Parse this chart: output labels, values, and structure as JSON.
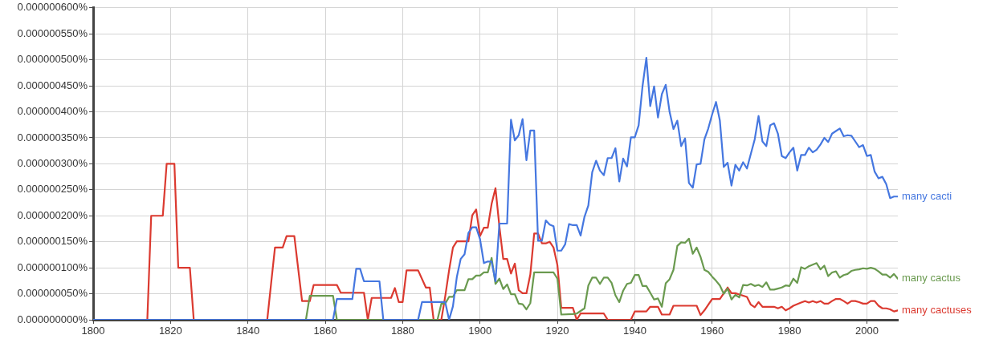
{
  "chart_data": {
    "type": "line",
    "xlim": [
      1800,
      2008
    ],
    "xticks": [
      1800,
      1820,
      1840,
      1860,
      1880,
      1900,
      1920,
      1940,
      1960,
      1980,
      2000
    ],
    "ylim": [
      0,
      6e-07
    ],
    "yticks": [
      {
        "value": 0,
        "label": "0.000000000%"
      },
      {
        "value": 5e-08,
        "label": "0.000000050%"
      },
      {
        "value": 1e-07,
        "label": "0.000000100%"
      },
      {
        "value": 1.5e-07,
        "label": "0.000000150%"
      },
      {
        "value": 2e-07,
        "label": "0.000000200%"
      },
      {
        "value": 2.5e-07,
        "label": "0.000000250%"
      },
      {
        "value": 3e-07,
        "label": "0.000000300%"
      },
      {
        "value": 3.5e-07,
        "label": "0.000000350%"
      },
      {
        "value": 4e-07,
        "label": "0.000000400%"
      },
      {
        "value": 4.5e-07,
        "label": "0.000000450%"
      },
      {
        "value": 5e-07,
        "label": "0.000000500%"
      },
      {
        "value": 5.5e-07,
        "label": "0.000000550%"
      },
      {
        "value": 6e-07,
        "label": "0.000000600%"
      }
    ],
    "grid": true,
    "legend": false,
    "marker": "none",
    "line_style": "solid",
    "series": [
      {
        "name": "many cacti",
        "color": "#4577e0",
        "x": [
          1800,
          1862,
          1863,
          1867,
          1868,
          1869,
          1870,
          1874,
          1875,
          1884,
          1885,
          1891,
          1892,
          1893,
          1894,
          1895,
          1896,
          1897,
          1898,
          1899,
          1900,
          1901,
          1902,
          1903,
          1904,
          1905,
          1907,
          1908,
          1909,
          1910,
          1911,
          1912,
          1913,
          1914,
          1915,
          1916,
          1917,
          1918,
          1919,
          1920,
          1921,
          1922,
          1923,
          1924,
          1925,
          1926,
          1927,
          1928,
          1929,
          1930,
          1931,
          1932,
          1933,
          1934,
          1935,
          1936,
          1937,
          1938,
          1939,
          1940,
          1941,
          1942,
          1943,
          1944,
          1945,
          1946,
          1947,
          1948,
          1949,
          1950,
          1951,
          1952,
          1953,
          1954,
          1955,
          1956,
          1957,
          1958,
          1959,
          1960,
          1961,
          1962,
          1963,
          1964,
          1965,
          1966,
          1967,
          1968,
          1969,
          1970,
          1971,
          1972,
          1973,
          1974,
          1975,
          1976,
          1977,
          1978,
          1979,
          1980,
          1981,
          1982,
          1983,
          1984,
          1985,
          1986,
          1987,
          1988,
          1989,
          1990,
          1991,
          1992,
          1993,
          1994,
          1995,
          1996,
          1997,
          1998,
          1999,
          2000,
          2001,
          2002,
          2003,
          2004,
          2005,
          2006,
          2007,
          2008
        ],
        "values": [
          0,
          0,
          4e-08,
          4e-08,
          9.8e-08,
          9.8e-08,
          7.4e-08,
          7.4e-08,
          0,
          0,
          3.4e-08,
          3.4e-08,
          0,
          2.6e-08,
          8.2e-08,
          1.17e-07,
          1.26e-07,
          1.67e-07,
          1.78e-07,
          1.78e-07,
          1.55e-07,
          1.09e-07,
          1.12e-07,
          1.12e-07,
          7.4e-08,
          1.85e-07,
          1.85e-07,
          3.85e-07,
          3.45e-07,
          3.55e-07,
          3.86e-07,
          3.07e-07,
          3.64e-07,
          3.64e-07,
          1.52e-07,
          1.52e-07,
          1.91e-07,
          1.83e-07,
          1.8e-07,
          1.33e-07,
          1.33e-07,
          1.45e-07,
          1.84e-07,
          1.82e-07,
          1.82e-07,
          1.62e-07,
          1.98e-07,
          2.2e-07,
          2.84e-07,
          3.06e-07,
          2.87e-07,
          2.78e-07,
          3.11e-07,
          3.11e-07,
          3.3e-07,
          2.66e-07,
          3.1e-07,
          2.95e-07,
          3.51e-07,
          3.51e-07,
          3.74e-07,
          4.49e-07,
          5.04e-07,
          4.11e-07,
          4.49e-07,
          3.89e-07,
          4.34e-07,
          4.52e-07,
          4e-07,
          3.67e-07,
          3.83e-07,
          3.34e-07,
          3.49e-07,
          2.63e-07,
          2.54e-07,
          2.99e-07,
          3e-07,
          3.47e-07,
          3.68e-07,
          3.95e-07,
          4.19e-07,
          3.83e-07,
          2.94e-07,
          3.02e-07,
          2.58e-07,
          2.98e-07,
          2.87e-07,
          3.03e-07,
          2.91e-07,
          3.19e-07,
          3.47e-07,
          3.92e-07,
          3.43e-07,
          3.34e-07,
          3.74e-07,
          3.78e-07,
          3.58e-07,
          3.15e-07,
          3.11e-07,
          3.22e-07,
          3.31e-07,
          2.87e-07,
          3.17e-07,
          3.17e-07,
          3.31e-07,
          3.22e-07,
          3.27e-07,
          3.37e-07,
          3.5e-07,
          3.42e-07,
          3.58e-07,
          3.63e-07,
          3.68e-07,
          3.53e-07,
          3.55e-07,
          3.54e-07,
          3.43e-07,
          3.32e-07,
          3.36e-07,
          3.15e-07,
          3.17e-07,
          2.85e-07,
          2.72e-07,
          2.75e-07,
          2.61e-07,
          2.34e-07,
          2.37e-07,
          2.37e-07
        ]
      },
      {
        "name": "many cactus",
        "color": "#6a9a4f",
        "x": [
          1800,
          1855,
          1856,
          1862,
          1863,
          1889,
          1890,
          1891,
          1892,
          1893,
          1894,
          1896,
          1897,
          1898,
          1899,
          1900,
          1901,
          1902,
          1903,
          1904,
          1905,
          1906,
          1907,
          1908,
          1909,
          1910,
          1911,
          1912,
          1913,
          1914,
          1919,
          1920,
          1921,
          1924,
          1925,
          1927,
          1928,
          1929,
          1930,
          1931,
          1932,
          1933,
          1934,
          1935,
          1936,
          1937,
          1938,
          1939,
          1940,
          1941,
          1942,
          1943,
          1944,
          1945,
          1946,
          1947,
          1948,
          1949,
          1950,
          1951,
          1952,
          1953,
          1954,
          1955,
          1956,
          1957,
          1958,
          1959,
          1960,
          1961,
          1962,
          1963,
          1964,
          1965,
          1966,
          1967,
          1968,
          1969,
          1970,
          1971,
          1972,
          1973,
          1974,
          1975,
          1976,
          1977,
          1978,
          1979,
          1980,
          1981,
          1982,
          1983,
          1984,
          1985,
          1986,
          1987,
          1988,
          1989,
          1990,
          1991,
          1992,
          1993,
          1994,
          1995,
          1996,
          1997,
          1998,
          1999,
          2000,
          2001,
          2002,
          2003,
          2004,
          2005,
          2006,
          2007,
          2008
        ],
        "values": [
          0,
          0,
          4.6e-08,
          4.6e-08,
          0,
          0,
          3.1e-08,
          3.1e-08,
          4.4e-08,
          4.4e-08,
          5.7e-08,
          5.7e-08,
          7.8e-08,
          7.8e-08,
          8.5e-08,
          8.5e-08,
          9.1e-08,
          9.1e-08,
          1.19e-07,
          6.9e-08,
          7.9e-08,
          5.9e-08,
          6.8e-08,
          4.9e-08,
          4.9e-08,
          3.1e-08,
          3e-08,
          2e-08,
          3.2e-08,
          9.1e-08,
          9.1e-08,
          7.9e-08,
          1e-08,
          1.1e-08,
          1.2e-08,
          2.2e-08,
          6.6e-08,
          8.1e-08,
          8.1e-08,
          6.9e-08,
          8.1e-08,
          8.1e-08,
          7.1e-08,
          4.7e-08,
          3.4e-08,
          5.6e-08,
          6.9e-08,
          7.1e-08,
          8.6e-08,
          8.6e-08,
          6.5e-08,
          6.5e-08,
          5.2e-08,
          3.9e-08,
          4.1e-08,
          2.5e-08,
          7e-08,
          7.8e-08,
          9.6e-08,
          1.42e-07,
          1.49e-07,
          1.48e-07,
          1.56e-07,
          1.27e-07,
          1.39e-07,
          1.21e-07,
          9.6e-08,
          9.2e-08,
          8.3e-08,
          7.5e-08,
          6.6e-08,
          5e-08,
          6e-08,
          3.9e-08,
          4.8e-08,
          4.3e-08,
          6.7e-08,
          6.6e-08,
          6.9e-08,
          6.5e-08,
          6.7e-08,
          6.3e-08,
          7.2e-08,
          5.8e-08,
          5.8e-08,
          6e-08,
          6.2e-08,
          6.6e-08,
          6.5e-08,
          7.9e-08,
          7.1e-08,
          1.01e-07,
          9.8e-08,
          1.03e-07,
          1.06e-07,
          1.09e-07,
          9.7e-08,
          1.04e-07,
          8.4e-08,
          9.1e-08,
          9.3e-08,
          8.1e-08,
          8.6e-08,
          8.8e-08,
          9.4e-08,
          9.6e-08,
          9.7e-08,
          9.9e-08,
          9.8e-08,
          1e-07,
          9.8e-08,
          9.3e-08,
          8.7e-08,
          8.7e-08,
          8.1e-08,
          8.8e-08,
          7.9e-08
        ]
      },
      {
        "name": "many cactuses",
        "color": "#db3a30",
        "x": [
          1800,
          1814,
          1815,
          1818,
          1819,
          1821,
          1822,
          1825,
          1826,
          1845,
          1846,
          1847,
          1849,
          1850,
          1852,
          1853,
          1854,
          1856,
          1857,
          1863,
          1864,
          1870,
          1871,
          1872,
          1877,
          1878,
          1879,
          1880,
          1881,
          1884,
          1886,
          1887,
          1888,
          1890,
          1891,
          1892,
          1893,
          1894,
          1897,
          1898,
          1899,
          1900,
          1901,
          1902,
          1903,
          1904,
          1905,
          1906,
          1907,
          1908,
          1909,
          1910,
          1911,
          1912,
          1913,
          1914,
          1915,
          1916,
          1917,
          1918,
          1919,
          1920,
          1921,
          1924,
          1925,
          1926,
          1932,
          1933,
          1939,
          1940,
          1943,
          1944,
          1946,
          1947,
          1949,
          1950,
          1956,
          1957,
          1958,
          1960,
          1962,
          1964,
          1965,
          1966,
          1969,
          1970,
          1971,
          1972,
          1973,
          1976,
          1977,
          1978,
          1979,
          1980,
          1981,
          1982,
          1983,
          1984,
          1985,
          1986,
          1987,
          1988,
          1989,
          1990,
          1991,
          1992,
          1993,
          1994,
          1995,
          1996,
          1997,
          1998,
          1999,
          2000,
          2001,
          2002,
          2003,
          2004,
          2005,
          2006,
          2007,
          2008
        ],
        "values": [
          0,
          0,
          2e-07,
          2e-07,
          3e-07,
          3e-07,
          1e-07,
          1e-07,
          0,
          0,
          7e-08,
          1.39e-07,
          1.39e-07,
          1.61e-07,
          1.61e-07,
          9.8e-08,
          3.6e-08,
          3.6e-08,
          6.7e-08,
          6.7e-08,
          5.2e-08,
          5.2e-08,
          0,
          4.2e-08,
          4.2e-08,
          6.1e-08,
          3.4e-08,
          3.4e-08,
          9.5e-08,
          9.5e-08,
          6.2e-08,
          6.2e-08,
          0,
          0,
          4.5e-08,
          9.5e-08,
          1.39e-07,
          1.51e-07,
          1.51e-07,
          2.01e-07,
          2.12e-07,
          1.61e-07,
          1.77e-07,
          1.77e-07,
          2.23e-07,
          2.53e-07,
          1.8e-07,
          1.17e-07,
          1.17e-07,
          8.9e-08,
          1.08e-07,
          5.7e-08,
          5.1e-08,
          5.1e-08,
          8.7e-08,
          1.66e-07,
          1.66e-07,
          1.47e-07,
          1.47e-07,
          1.5e-07,
          1.39e-07,
          1.05e-07,
          2.3e-08,
          2.3e-08,
          0,
          1.2e-08,
          1.2e-08,
          0,
          0,
          1.6e-08,
          1.6e-08,
          2.5e-08,
          2.5e-08,
          1e-08,
          1e-08,
          2.7e-08,
          2.7e-08,
          9e-09,
          1.8e-08,
          4e-08,
          4e-08,
          6.2e-08,
          5.1e-08,
          5.1e-08,
          4.4e-08,
          2.9e-08,
          2.4e-08,
          3.4e-08,
          2.5e-08,
          2.5e-08,
          2.2e-08,
          2.5e-08,
          1.8e-08,
          2.2e-08,
          2.7e-08,
          3e-08,
          3.3e-08,
          3.6e-08,
          3.3e-08,
          3.6e-08,
          3.3e-08,
          3.6e-08,
          3.1e-08,
          3.1e-08,
          3.6e-08,
          4e-08,
          4e-08,
          3.6e-08,
          3.1e-08,
          3.6e-08,
          3.6e-08,
          3.4e-08,
          3.1e-08,
          3.1e-08,
          3.6e-08,
          3.6e-08,
          2.7e-08,
          2.2e-08,
          2.2e-08,
          2e-08,
          1.6e-08,
          1.8e-08
        ]
      }
    ]
  }
}
